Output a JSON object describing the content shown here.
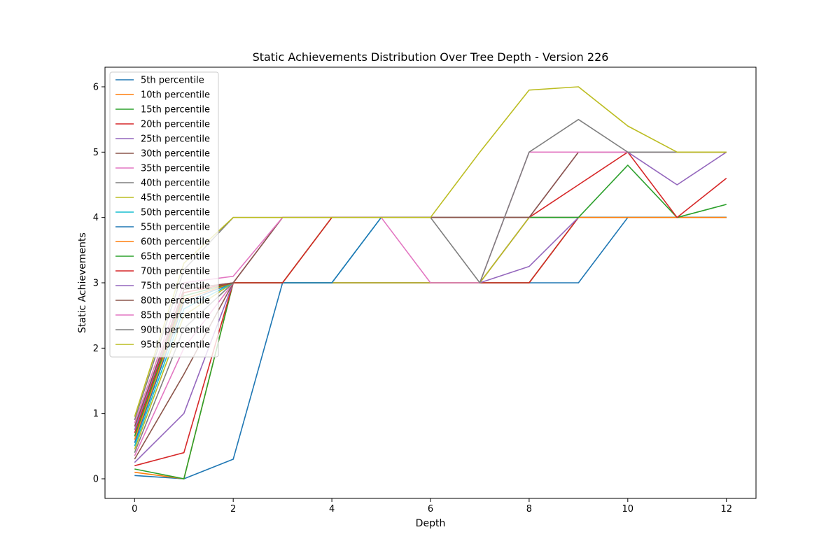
{
  "chart_data": {
    "type": "line",
    "title": "Static Achievements Distribution Over Tree Depth - Version 226",
    "xlabel": "Depth",
    "ylabel": "Static Achievements",
    "xlim": [
      -0.6,
      12.6
    ],
    "ylim": [
      -0.3,
      6.3
    ],
    "xticks": [
      0,
      2,
      4,
      6,
      8,
      10,
      12
    ],
    "yticks": [
      0,
      1,
      2,
      3,
      4,
      5,
      6
    ],
    "grid": false,
    "legend_position": "upper-left",
    "x": [
      0,
      1,
      2,
      3,
      4,
      5,
      6,
      7,
      8,
      9,
      10,
      11,
      12
    ],
    "series": [
      {
        "name": "5th percentile",
        "color": "#1f77b4",
        "values": [
          0.05,
          0.0,
          0.3,
          3.0,
          3.0,
          3.0,
          3.0,
          3.0,
          3.0,
          3.0,
          4.0,
          4.0,
          4.0
        ]
      },
      {
        "name": "10th percentile",
        "color": "#ff7f0e",
        "values": [
          0.1,
          0.0,
          3.0,
          3.0,
          3.0,
          3.0,
          3.0,
          3.0,
          3.0,
          4.0,
          4.0,
          4.0,
          4.0
        ]
      },
      {
        "name": "15th percentile",
        "color": "#2ca02c",
        "values": [
          0.15,
          0.0,
          3.0,
          3.0,
          3.0,
          3.0,
          3.0,
          3.0,
          3.0,
          4.0,
          4.0,
          4.0,
          4.0
        ]
      },
      {
        "name": "20th percentile",
        "color": "#d62728",
        "values": [
          0.2,
          0.4,
          3.0,
          3.0,
          3.0,
          3.0,
          3.0,
          3.0,
          3.0,
          4.0,
          4.0,
          4.0,
          4.0
        ]
      },
      {
        "name": "25th percentile",
        "color": "#9467bd",
        "values": [
          0.25,
          1.0,
          3.0,
          3.0,
          3.0,
          3.0,
          3.0,
          3.0,
          3.25,
          4.0,
          4.0,
          4.0,
          4.0
        ]
      },
      {
        "name": "30th percentile",
        "color": "#8c564b",
        "values": [
          0.3,
          1.6,
          3.0,
          3.0,
          3.0,
          3.0,
          3.0,
          3.0,
          4.0,
          4.0,
          4.0,
          4.0,
          4.0
        ]
      },
      {
        "name": "35th percentile",
        "color": "#e377c2",
        "values": [
          0.35,
          2.0,
          3.0,
          3.0,
          3.0,
          3.0,
          3.0,
          3.0,
          4.0,
          4.0,
          4.0,
          4.0,
          4.0
        ]
      },
      {
        "name": "40th percentile",
        "color": "#7f7f7f",
        "values": [
          0.4,
          2.3,
          3.0,
          3.0,
          3.0,
          3.0,
          3.0,
          3.0,
          4.0,
          4.0,
          4.0,
          4.0,
          4.0
        ]
      },
      {
        "name": "45th percentile",
        "color": "#bcbd22",
        "values": [
          0.45,
          2.5,
          3.0,
          3.0,
          3.0,
          3.0,
          3.0,
          3.0,
          4.0,
          4.0,
          4.0,
          4.0,
          4.0
        ]
      },
      {
        "name": "50th percentile",
        "color": "#17becf",
        "values": [
          0.5,
          2.6,
          3.0,
          3.0,
          3.0,
          4.0,
          4.0,
          4.0,
          4.0,
          4.0,
          4.0,
          4.0,
          4.0
        ]
      },
      {
        "name": "55th percentile",
        "color": "#1f77b4",
        "values": [
          0.55,
          2.7,
          3.0,
          3.0,
          3.0,
          4.0,
          4.0,
          4.0,
          4.0,
          4.0,
          4.0,
          4.0,
          4.0
        ]
      },
      {
        "name": "60th percentile",
        "color": "#ff7f0e",
        "values": [
          0.6,
          2.75,
          3.0,
          3.0,
          4.0,
          4.0,
          4.0,
          4.0,
          4.0,
          4.0,
          4.0,
          4.0,
          4.0
        ]
      },
      {
        "name": "65th percentile",
        "color": "#2ca02c",
        "values": [
          0.65,
          2.8,
          3.0,
          3.0,
          4.0,
          4.0,
          4.0,
          4.0,
          4.0,
          4.0,
          4.8,
          4.0,
          4.2
        ]
      },
      {
        "name": "70th percentile",
        "color": "#d62728",
        "values": [
          0.7,
          2.85,
          3.0,
          3.0,
          4.0,
          4.0,
          4.0,
          4.0,
          4.0,
          4.5,
          5.0,
          4.0,
          4.6
        ]
      },
      {
        "name": "75th percentile",
        "color": "#9467bd",
        "values": [
          0.75,
          2.9,
          3.0,
          4.0,
          4.0,
          4.0,
          4.0,
          4.0,
          4.0,
          5.0,
          5.0,
          4.5,
          5.0
        ]
      },
      {
        "name": "80th percentile",
        "color": "#8c564b",
        "values": [
          0.8,
          2.9,
          3.0,
          4.0,
          4.0,
          4.0,
          4.0,
          4.0,
          4.0,
          5.0,
          5.0,
          5.0,
          5.0
        ]
      },
      {
        "name": "85th percentile",
        "color": "#e377c2",
        "values": [
          0.85,
          3.0,
          3.1,
          4.0,
          4.0,
          4.0,
          3.0,
          3.0,
          5.0,
          5.0,
          5.0,
          5.0,
          5.0
        ]
      },
      {
        "name": "90th percentile",
        "color": "#7f7f7f",
        "values": [
          0.9,
          3.2,
          4.0,
          4.0,
          4.0,
          4.0,
          4.0,
          3.0,
          5.0,
          5.5,
          5.0,
          5.0,
          5.0
        ]
      },
      {
        "name": "95th percentile",
        "color": "#bcbd22",
        "values": [
          0.95,
          3.3,
          4.0,
          4.0,
          4.0,
          4.0,
          4.0,
          5.0,
          5.95,
          6.0,
          5.4,
          5.0,
          5.0
        ]
      }
    ]
  }
}
